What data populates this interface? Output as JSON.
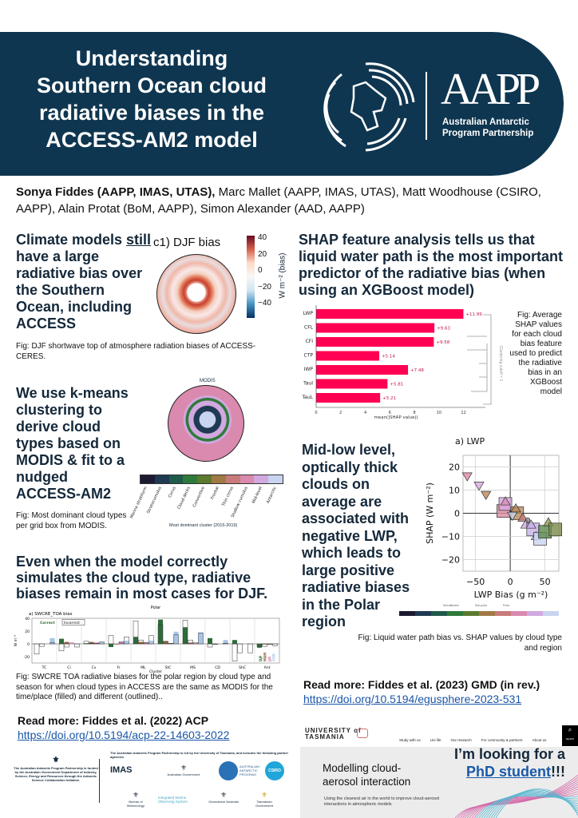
{
  "header": {
    "title_lines": [
      "Understanding",
      "Southern Ocean cloud",
      "radiative biases in the",
      "ACCESS-AM2 model"
    ],
    "logo": {
      "name": "AAPP",
      "subtitle_lines": [
        "Australian Antarctic",
        "Program Partnership"
      ]
    }
  },
  "authors": {
    "lead": "Sonya Fiddes (AAPP, IMAS, UTAS),",
    "rest": " Marc Mallet (AAPP, IMAS, UTAS), Matt Woodhouse (CSIRO, AAPP), Alain Protat (BoM, AAPP), Simon Alexander (AAD, AAPP)"
  },
  "sec1": {
    "pre": "Climate models ",
    "emph": "still",
    "post": " have a large radiative bias over the Southern Ocean, including ACCESS",
    "fig_title": "c1) DJF bias",
    "cbar_label": "W m⁻² (bias)",
    "cbar_ticks": [
      "40",
      "20",
      "0",
      "−20",
      "−40"
    ],
    "caption": "Fig: DJF shortwave top of atmosphere radiation biases of ACCESS-CERES."
  },
  "sec2": {
    "heading": "We use k-means clustering to derive cloud types based on MODIS & fit to a nudged ACCESS-AM2",
    "fig_title": "MODIS",
    "xlabel": "Most dominant cluster (2015-2019)",
    "clusters": [
      "Marine stratiform",
      "Stratocumulus",
      "Cirrus",
      "Cloud decks",
      "Convective",
      "Frontal",
      "Thin cirrus",
      "Shallow cumulus",
      "Mid-level",
      "Antarctic"
    ],
    "cluster_colors": [
      "#1c1a33",
      "#1f3a52",
      "#1f5a4a",
      "#2f7a3a",
      "#5b7a2e",
      "#a07a45",
      "#c97a7a",
      "#d98aae",
      "#d2a8e0",
      "#c9d4f0"
    ],
    "caption": "Fig: Most dominant cloud types per grid box from MODIS."
  },
  "sec3": {
    "heading": "Even when the model correctly simulates the cloud type, radiative biases remain in most cases for DJF.",
    "caption": "Fig: SWCRE TOA radiative biases for the polar region by cloud type and season for when cloud types in ACCESS are the same as MODIS for the time/place (filled) and different (outlined).."
  },
  "sec4": {
    "heading": "SHAP feature analysis tells us that liquid water path is the most important predictor of the radiative bias (when using an XGBoost model)",
    "caption": "Fig: Average SHAP values for each cloud bias feature used to predict the radiative bias in an XGBoost model",
    "cluster_label": "Clustering cutoff = 1"
  },
  "sec5": {
    "heading": "Mid-low level, optically thick clouds on average are associated with negative LWP, which leads to large positive radiative biases in the Polar region",
    "legend": [
      "Mid-latitudes",
      "Sub-polar",
      "Polar"
    ],
    "caption": "Fig: Liquid water path bias vs. SHAP values by cloud type and region"
  },
  "readmore_left": {
    "text": "Read more: Fiddes et al. (2022) ACP",
    "link": "https://doi.org/10.5194/acp-22-14603-2022"
  },
  "readmore_right": {
    "text": "Read more: Fiddes et al. (2023) GMD (in rev.)",
    "link": "https://doi.org/10.5194/egusphere-2023-531"
  },
  "funding": {
    "text": "The Australian Antarctic Program Partnership is funded by the Australian Government Department of Industry, Science, Energy and Resources through the Antarctic Science Collaboration Initiative.",
    "partners_text": "The Australian Antarctic Program Partnership is led by the University of Tasmania, and includes the following partner agencies",
    "logos": [
      "IMAS",
      "Australian Government",
      "AUSTRALIAN ANTARCTIC PROGRAM",
      "CSIRO",
      "Bureau of Meteorology",
      "Integrated Marine Observing System",
      "Geoscience Australia",
      "Tasmanian Government"
    ]
  },
  "utas": {
    "logo_lines": [
      "UNIVERSITY of",
      "TASMANIA"
    ],
    "nav": [
      "Study with us",
      "Uni life",
      "Our research",
      "For community & partners",
      "About us"
    ],
    "search": "SEARCH",
    "title": "Modelling cloud-aerosol interaction",
    "subtitle": "Using the cleanest air in the world to improve cloud-aerosol interactions in atmospheric models",
    "phd_pre": "I’m looking for a",
    "phd_link": "PhD student",
    "phd_post": "!!!"
  },
  "chart_data": [
    {
      "type": "bar",
      "orientation": "horizontal",
      "categories": [
        "LWP",
        "CFL",
        "CFI",
        "CTP",
        "IWP",
        "TauI",
        "TauL"
      ],
      "values": [
        11.99,
        9.63,
        9.58,
        5.14,
        7.48,
        5.81,
        5.21
      ],
      "labels": [
        "+11.99",
        "+9.63",
        "+9.58",
        "+5.14",
        "+7.48",
        "+5.81",
        "+5.21"
      ],
      "xlabel": "mean(|SHAP value|)",
      "xlim": [
        0,
        13
      ],
      "xticks": [
        0,
        2,
        4,
        6,
        8,
        10,
        12
      ],
      "color": "#ff0052"
    },
    {
      "type": "scatter",
      "title": "a) LWP",
      "xlabel": "LWP Bias (g m⁻²)",
      "ylabel": "SHAP (W m⁻²)",
      "xlim": [
        -68,
        70
      ],
      "ylim": [
        -25,
        25
      ],
      "xticks": [
        -50,
        0,
        50
      ],
      "yticks": [
        20,
        10,
        0,
        -10,
        -20
      ],
      "grid": true,
      "points": [
        {
          "x": -62,
          "y": 16,
          "m": "tri-down",
          "c": "#d98aa0"
        },
        {
          "x": -45,
          "y": 12,
          "m": "tri-down",
          "c": "#d8a8e0"
        },
        {
          "x": -35,
          "y": 8,
          "m": "tri-down",
          "c": "#b98a5a"
        },
        {
          "x": -10,
          "y": 1,
          "m": "square",
          "c": "#d98aa0"
        },
        {
          "x": -7,
          "y": 4,
          "m": "square",
          "c": "#d8a8e0"
        },
        {
          "x": -7,
          "y": 5,
          "m": "tri",
          "c": "#d98aae"
        },
        {
          "x": 10,
          "y": 0,
          "m": "square",
          "c": "#b98a5a"
        },
        {
          "x": 8,
          "y": 2,
          "m": "tri",
          "c": "#b98a5a"
        },
        {
          "x": 3,
          "y": -1,
          "m": "tri-down",
          "c": "#c9d4f0"
        },
        {
          "x": 18,
          "y": -2,
          "m": "tri",
          "c": "#c97a7a"
        },
        {
          "x": 25,
          "y": -3,
          "m": "circle",
          "c": "#888"
        },
        {
          "x": 22,
          "y": -5,
          "m": "tri",
          "c": "#d2a8e0"
        },
        {
          "x": 33,
          "y": -7,
          "m": "square",
          "c": "#c8b0e6"
        },
        {
          "x": 30,
          "y": -5,
          "m": "tri",
          "c": "#c8b0e6"
        },
        {
          "x": 37,
          "y": -10,
          "m": "tri",
          "c": "#c9d4f0"
        },
        {
          "x": 43,
          "y": -11,
          "m": "square",
          "c": "#c9d4f0"
        },
        {
          "x": 50,
          "y": -8,
          "m": "square",
          "c": "#5b8a4a"
        },
        {
          "x": 55,
          "y": -4,
          "m": "tri",
          "c": "#8a9a4a"
        },
        {
          "x": 65,
          "y": -7,
          "m": "square",
          "c": "#7a8a4a"
        }
      ]
    },
    {
      "type": "bar",
      "title": "Polar",
      "subtitle": "a) SWCRE_TOA bias",
      "ylabel": "W m⁻²",
      "xlabel": "Cluster",
      "ylim": [
        -30,
        40
      ],
      "yticks": [
        40,
        20,
        0,
        -20
      ],
      "legend_fill": "Correct",
      "legend_outline": "Incorrect",
      "seasons": [
        "DJF",
        "MAM",
        "JJA",
        "SON"
      ],
      "season_colors": [
        "#2e6b3a",
        "#8b5e3c",
        "#c87aa8",
        "#a9c4e6"
      ],
      "categories": [
        "TC",
        "Ci",
        "Cv",
        "Fr",
        "ML",
        "StC",
        "MS",
        "CD",
        "ShC",
        "Ant"
      ],
      "correct": [
        [
          0,
          0,
          0,
          9
        ],
        [
          8,
          3,
          2,
          0
        ],
        [
          1,
          3,
          2,
          3
        ],
        [
          -5,
          -1,
          3,
          5
        ],
        [
          11,
          3,
          2,
          5
        ],
        [
          38,
          4,
          1,
          19
        ],
        [
          26,
          2,
          1,
          18
        ],
        [
          9,
          0,
          0,
          6
        ],
        [
          6,
          0,
          0,
          0
        ],
        [
          -6,
          -1,
          0,
          -1
        ]
      ],
      "incorrect": [
        [
          -16,
          -4,
          0,
          2
        ],
        [
          -11,
          -5,
          0,
          -5
        ],
        [
          4,
          1,
          1,
          3
        ],
        [
          13,
          0,
          3,
          11
        ],
        [
          36,
          6,
          2,
          13
        ],
        [
          30,
          4,
          1,
          14
        ],
        [
          37,
          6,
          2,
          17
        ],
        [
          -5,
          -1,
          0,
          1
        ],
        [
          -27,
          -14,
          0,
          -14
        ],
        [
          -4,
          -4,
          -1,
          -3
        ]
      ]
    }
  ]
}
